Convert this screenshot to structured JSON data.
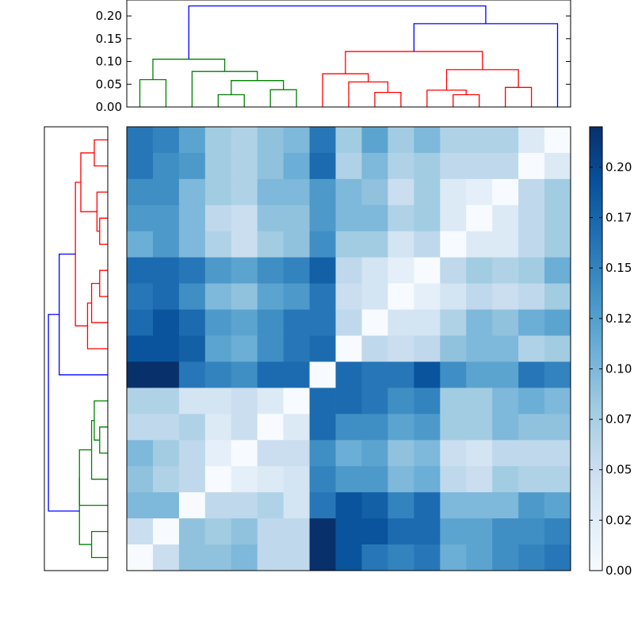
{
  "chart_data": [
    {
      "type": "heatmap",
      "title": "",
      "xlabel": "",
      "ylabel": "",
      "colormap": "Blues",
      "vmin": 0.0,
      "vmax": 0.22,
      "x_tick_labels": [],
      "y_tick_labels": [],
      "values": [
        [
          0.16,
          0.15,
          0.12,
          0.08,
          0.07,
          0.09,
          0.1,
          0.16,
          0.08,
          0.12,
          0.08,
          0.1,
          0.07,
          0.07,
          0.07,
          0.03,
          0.0
        ],
        [
          0.16,
          0.14,
          0.13,
          0.08,
          0.07,
          0.09,
          0.11,
          0.17,
          0.07,
          0.1,
          0.07,
          0.08,
          0.06,
          0.06,
          0.06,
          0.0,
          0.03
        ],
        [
          0.14,
          0.14,
          0.1,
          0.08,
          0.07,
          0.1,
          0.1,
          0.13,
          0.1,
          0.09,
          0.05,
          0.08,
          0.03,
          0.02,
          0.0,
          0.06,
          0.08
        ],
        [
          0.13,
          0.13,
          0.1,
          0.06,
          0.05,
          0.09,
          0.09,
          0.13,
          0.1,
          0.1,
          0.07,
          0.08,
          0.03,
          0.0,
          0.03,
          0.06,
          0.08
        ],
        [
          0.11,
          0.13,
          0.1,
          0.07,
          0.05,
          0.08,
          0.09,
          0.14,
          0.08,
          0.08,
          0.04,
          0.06,
          0.0,
          0.03,
          0.03,
          0.06,
          0.08
        ],
        [
          0.17,
          0.17,
          0.16,
          0.13,
          0.12,
          0.14,
          0.15,
          0.18,
          0.06,
          0.04,
          0.02,
          0.0,
          0.06,
          0.08,
          0.07,
          0.08,
          0.11
        ],
        [
          0.16,
          0.17,
          0.14,
          0.1,
          0.09,
          0.12,
          0.13,
          0.16,
          0.05,
          0.04,
          0.0,
          0.02,
          0.04,
          0.06,
          0.05,
          0.06,
          0.08
        ],
        [
          0.17,
          0.19,
          0.17,
          0.13,
          0.12,
          0.14,
          0.16,
          0.16,
          0.06,
          0.0,
          0.04,
          0.04,
          0.07,
          0.1,
          0.09,
          0.11,
          0.12
        ],
        [
          0.19,
          0.19,
          0.18,
          0.12,
          0.11,
          0.14,
          0.16,
          0.17,
          0.0,
          0.06,
          0.05,
          0.06,
          0.09,
          0.1,
          0.1,
          0.07,
          0.08
        ],
        [
          0.22,
          0.23,
          0.16,
          0.15,
          0.14,
          0.17,
          0.17,
          0.0,
          0.17,
          0.16,
          0.16,
          0.19,
          0.14,
          0.12,
          0.12,
          0.16,
          0.15
        ],
        [
          0.07,
          0.07,
          0.04,
          0.04,
          0.05,
          0.03,
          0.0,
          0.17,
          0.17,
          0.16,
          0.14,
          0.15,
          0.08,
          0.08,
          0.1,
          0.11,
          0.1
        ],
        [
          0.06,
          0.06,
          0.07,
          0.03,
          0.05,
          0.0,
          0.03,
          0.17,
          0.14,
          0.14,
          0.12,
          0.13,
          0.08,
          0.08,
          0.1,
          0.09,
          0.09
        ],
        [
          0.1,
          0.08,
          0.06,
          0.02,
          0.0,
          0.05,
          0.05,
          0.14,
          0.11,
          0.12,
          0.09,
          0.1,
          0.05,
          0.04,
          0.06,
          0.06,
          0.06
        ],
        [
          0.09,
          0.07,
          0.06,
          0.0,
          0.02,
          0.03,
          0.04,
          0.15,
          0.13,
          0.13,
          0.1,
          0.11,
          0.06,
          0.05,
          0.08,
          0.07,
          0.07
        ],
        [
          0.1,
          0.1,
          0.0,
          0.06,
          0.06,
          0.07,
          0.04,
          0.16,
          0.19,
          0.18,
          0.15,
          0.17,
          0.1,
          0.1,
          0.1,
          0.13,
          0.12
        ],
        [
          0.05,
          0.0,
          0.09,
          0.08,
          0.09,
          0.06,
          0.06,
          0.23,
          0.19,
          0.19,
          0.17,
          0.17,
          0.12,
          0.12,
          0.14,
          0.14,
          0.15
        ],
        [
          0.0,
          0.05,
          0.09,
          0.09,
          0.1,
          0.06,
          0.06,
          0.22,
          0.19,
          0.16,
          0.15,
          0.16,
          0.11,
          0.12,
          0.14,
          0.15,
          0.16
        ]
      ]
    },
    {
      "type": "dendrogram",
      "orientation": "top",
      "ylim": [
        0.0,
        0.235
      ],
      "y_ticks": [
        0.0,
        0.05,
        0.1,
        0.15,
        0.2
      ],
      "y_tick_labels": [
        "0.00",
        "0.05",
        "0.10",
        "0.15",
        "0.20"
      ],
      "leaf_count": 17,
      "links": [
        {
          "left": 0,
          "right": 1,
          "height": 0.06,
          "color": "#008000"
        },
        {
          "left": 3,
          "right": 4,
          "height": 0.027,
          "color": "#008000"
        },
        {
          "left": 5,
          "right": 6,
          "height": 0.038,
          "color": "#008000"
        },
        {
          "left": 3.5,
          "right": 5.5,
          "height": 0.058,
          "color": "#008000"
        },
        {
          "left": 2,
          "right": 4.5,
          "height": 0.078,
          "color": "#008000"
        },
        {
          "left": 0.5,
          "right": 3.25,
          "height": 0.105,
          "color": "#008000"
        },
        {
          "left": 9,
          "right": 10,
          "height": 0.032,
          "color": "#ff0000"
        },
        {
          "left": 8,
          "right": 9.5,
          "height": 0.055,
          "color": "#ff0000"
        },
        {
          "left": 7,
          "right": 8.75,
          "height": 0.073,
          "color": "#ff0000"
        },
        {
          "left": 12,
          "right": 13,
          "height": 0.027,
          "color": "#ff0000"
        },
        {
          "left": 11,
          "right": 12.5,
          "height": 0.037,
          "color": "#ff0000"
        },
        {
          "left": 14,
          "right": 15,
          "height": 0.043,
          "color": "#ff0000"
        },
        {
          "left": 11.75,
          "right": 14.5,
          "height": 0.082,
          "color": "#ff0000"
        },
        {
          "left": 7.875,
          "right": 13.125,
          "height": 0.122,
          "color": "#ff0000"
        },
        {
          "left": 10.5,
          "right": 16,
          "height": 0.183,
          "color": "#0000ff"
        },
        {
          "left": 1.875,
          "right": 13.25,
          "height": 0.222,
          "color": "#0000ff"
        }
      ]
    },
    {
      "type": "dendrogram",
      "orientation": "left",
      "leaf_count": 17,
      "links": [
        {
          "left": 0,
          "right": 1,
          "height": 0.05,
          "color": "#ff0000"
        },
        {
          "left": 3,
          "right": 4,
          "height": 0.03,
          "color": "#ff0000"
        },
        {
          "left": 2,
          "right": 3.5,
          "height": 0.04,
          "color": "#ff0000"
        },
        {
          "left": 0.5,
          "right": 2.75,
          "height": 0.1,
          "color": "#ff0000"
        },
        {
          "left": 5,
          "right": 6,
          "height": 0.03,
          "color": "#ff0000"
        },
        {
          "left": 5.5,
          "right": 7,
          "height": 0.06,
          "color": "#ff0000"
        },
        {
          "left": 6.25,
          "right": 8,
          "height": 0.075,
          "color": "#ff0000"
        },
        {
          "left": 1.625,
          "right": 7.125,
          "height": 0.12,
          "color": "#ff0000"
        },
        {
          "left": 4.375,
          "right": 9,
          "height": 0.18,
          "color": "#0000ff"
        },
        {
          "left": 11,
          "right": 12,
          "height": 0.03,
          "color": "#008000"
        },
        {
          "left": 10,
          "right": 11.5,
          "height": 0.05,
          "color": "#008000"
        },
        {
          "left": 10.75,
          "right": 13,
          "height": 0.06,
          "color": "#008000"
        },
        {
          "left": 11.875,
          "right": 14,
          "height": 0.105,
          "color": "#008000"
        },
        {
          "left": 15,
          "right": 16,
          "height": 0.06,
          "color": "#008000"
        },
        {
          "left": 12.9375,
          "right": 15.5,
          "height": 0.105,
          "color": "#008000"
        },
        {
          "left": 6.6875,
          "right": 14.21875,
          "height": 0.22,
          "color": "#0000ff"
        }
      ]
    },
    {
      "type": "colorbar",
      "colormap": "Blues",
      "vmin": 0.0,
      "vmax": 0.22,
      "ticks": [
        0.0,
        0.025,
        0.05,
        0.075,
        0.1,
        0.125,
        0.15,
        0.175,
        0.2
      ],
      "tick_labels": [
        "0.00",
        "0.02",
        "0.05",
        "0.07",
        "0.10",
        "0.12",
        "0.15",
        "0.17",
        "0.20"
      ]
    }
  ]
}
